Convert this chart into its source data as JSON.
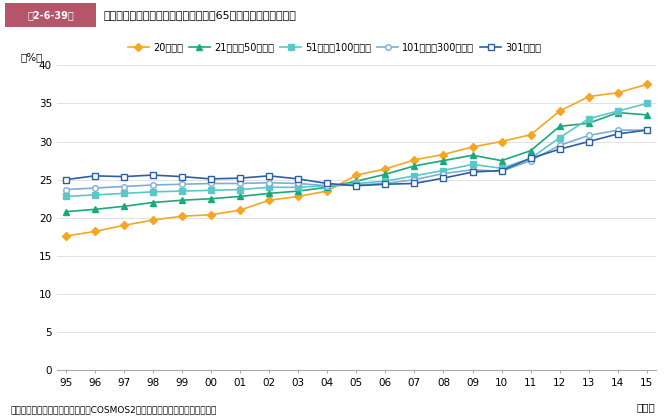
{
  "header_label": "第2-6-39図",
  "header_text": "従業員規模別に見た中小企業経営者の65歳以上年齢割合の推移",
  "ylabel": "（%）",
  "xlabel": "（年）",
  "footnote": "資料：（株）帝国データバンク「COSMOS2（企業概要ファイル）」再編加工",
  "year_labels": [
    "95",
    "96",
    "97",
    "98",
    "99",
    "00",
    "01",
    "02",
    "03",
    "04",
    "05",
    "06",
    "07",
    "08",
    "09",
    "10",
    "11",
    "12",
    "13",
    "14",
    "15"
  ],
  "series": [
    {
      "label": "20人以下",
      "color": "#F5A623",
      "marker": "D",
      "marker_face": "#F5A623",
      "marker_edge": "#F5A623",
      "marker_size": 4,
      "values": [
        17.6,
        18.2,
        19.0,
        19.7,
        20.2,
        20.4,
        21.0,
        22.3,
        22.8,
        23.5,
        25.6,
        26.4,
        27.6,
        28.3,
        29.3,
        30.0,
        30.9,
        34.0,
        35.9,
        36.4,
        37.5
      ]
    },
    {
      "label": "21人以上50人以下",
      "color": "#1BA87A",
      "marker": "^",
      "marker_face": "#1BA87A",
      "marker_edge": "#1BA87A",
      "marker_size": 4,
      "values": [
        20.8,
        21.1,
        21.5,
        22.0,
        22.3,
        22.5,
        22.8,
        23.2,
        23.5,
        24.0,
        24.8,
        25.7,
        26.8,
        27.5,
        28.2,
        27.5,
        28.8,
        32.0,
        32.4,
        33.8,
        33.5
      ]
    },
    {
      "label": "51人以上100人以下",
      "color": "#5BC8C8",
      "marker": "s",
      "marker_face": "#5BC8C8",
      "marker_edge": "#5BC8C8",
      "marker_size": 4,
      "values": [
        22.8,
        23.0,
        23.2,
        23.4,
        23.5,
        23.6,
        23.7,
        24.0,
        24.0,
        24.2,
        24.5,
        24.8,
        25.5,
        26.2,
        27.0,
        26.5,
        27.8,
        30.5,
        33.0,
        34.0,
        35.0
      ]
    },
    {
      "label": "101人以上300人以下",
      "color": "#7BAFD4",
      "marker": "o",
      "marker_face": "white",
      "marker_edge": "#7BAFD4",
      "marker_size": 4,
      "values": [
        23.7,
        23.9,
        24.1,
        24.3,
        24.4,
        24.5,
        24.5,
        24.6,
        24.5,
        24.2,
        24.3,
        24.5,
        25.0,
        25.8,
        26.3,
        26.1,
        27.5,
        29.5,
        30.8,
        31.5,
        31.5
      ]
    },
    {
      "label": "301人以上",
      "color": "#2E5FA3",
      "marker": "s",
      "marker_face": "white",
      "marker_edge": "#2E5FA3",
      "marker_size": 4,
      "values": [
        25.0,
        25.5,
        25.4,
        25.6,
        25.4,
        25.1,
        25.2,
        25.5,
        25.1,
        24.5,
        24.2,
        24.4,
        24.5,
        25.2,
        26.0,
        26.2,
        27.8,
        29.0,
        30.0,
        31.0,
        31.5
      ]
    }
  ],
  "ylim": [
    0,
    40
  ],
  "yticks": [
    0,
    5,
    10,
    15,
    20,
    25,
    30,
    35,
    40
  ],
  "background_color": "#ffffff",
  "header_bg": "#B5556A",
  "header_text_color": "white",
  "grid_color": "#dddddd",
  "axis_color": "#aaaaaa"
}
